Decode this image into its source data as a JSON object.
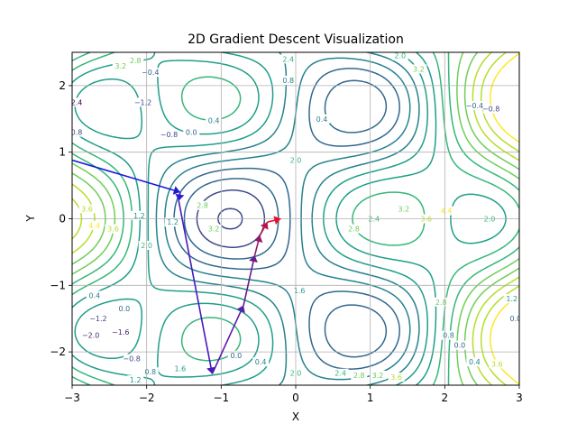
{
  "chart_data": {
    "type": "contour",
    "title": "2D Gradient Descent Visualization",
    "xlabel": "X",
    "ylabel": "Y",
    "xlim": [
      -3,
      3
    ],
    "ylim": [
      -2.5,
      2.5
    ],
    "grid": true,
    "x_ticks": [
      {
        "value": -3,
        "label": "−3"
      },
      {
        "value": -2,
        "label": "−2"
      },
      {
        "value": -1,
        "label": "−1"
      },
      {
        "value": 0,
        "label": "0"
      },
      {
        "value": 1,
        "label": "1"
      },
      {
        "value": 2,
        "label": "2"
      },
      {
        "value": 3,
        "label": "3"
      }
    ],
    "y_ticks": [
      {
        "value": -2,
        "label": "−2"
      },
      {
        "value": -1,
        "label": "−1"
      },
      {
        "value": 0,
        "label": "0"
      },
      {
        "value": 1,
        "label": "1"
      },
      {
        "value": 2,
        "label": "2"
      }
    ],
    "contour_levels": [
      -2.4,
      -2.0,
      -1.6,
      -1.2,
      -0.8,
      -0.4,
      0.0,
      0.4,
      0.8,
      1.2,
      1.6,
      2.0,
      2.4,
      2.8,
      3.2,
      3.6,
      4.0,
      4.4
    ],
    "colormap": [
      "#440154",
      "#482878",
      "#3e4989",
      "#31688e",
      "#26828e",
      "#1f9e89",
      "#35b779",
      "#6ece58",
      "#b5de2b",
      "#fde725"
    ],
    "contour_labels": [
      {
        "x": -1.95,
        "y": 2.2,
        "text": "−0.4"
      },
      {
        "x": -2.05,
        "y": 1.75,
        "text": "−1.2"
      },
      {
        "x": -1.7,
        "y": 1.27,
        "text": "−0.8"
      },
      {
        "x": -1.4,
        "y": 1.3,
        "text": "0.0"
      },
      {
        "x": -1.1,
        "y": 1.48,
        "text": "0.4"
      },
      {
        "x": -1.25,
        "y": 0.2,
        "text": "2.8"
      },
      {
        "x": -1.1,
        "y": -0.15,
        "text": "3.2"
      },
      {
        "x": -1.65,
        "y": -0.05,
        "text": "1.2"
      },
      {
        "x": -0.1,
        "y": 2.4,
        "text": "2.4"
      },
      {
        "x": -0.1,
        "y": 2.08,
        "text": "0.8"
      },
      {
        "x": 0.35,
        "y": 1.5,
        "text": "0.4"
      },
      {
        "x": 0.0,
        "y": 0.88,
        "text": "2.0"
      },
      {
        "x": 0.78,
        "y": -0.15,
        "text": "2.8"
      },
      {
        "x": 1.05,
        "y": 0.0,
        "text": "2.4"
      },
      {
        "x": 0.05,
        "y": -1.08,
        "text": "1.6"
      },
      {
        "x": -0.47,
        "y": -2.15,
        "text": "0.4"
      },
      {
        "x": -0.8,
        "y": -2.05,
        "text": "0.0"
      },
      {
        "x": 0.0,
        "y": -2.32,
        "text": "2.0"
      },
      {
        "x": 0.6,
        "y": -2.32,
        "text": "2.4"
      },
      {
        "x": 0.85,
        "y": -2.35,
        "text": "2.8"
      },
      {
        "x": 1.1,
        "y": -2.35,
        "text": "3.2"
      },
      {
        "x": 1.35,
        "y": -2.38,
        "text": "3.6"
      },
      {
        "x": 1.45,
        "y": 0.15,
        "text": "3.2"
      },
      {
        "x": 1.75,
        "y": 0.0,
        "text": "3.6"
      },
      {
        "x": 2.02,
        "y": 0.12,
        "text": "4.4"
      },
      {
        "x": 2.6,
        "y": 0.0,
        "text": "2.0"
      },
      {
        "x": 2.4,
        "y": 1.7,
        "text": "−0.4"
      },
      {
        "x": 2.62,
        "y": 1.65,
        "text": "−0.8"
      },
      {
        "x": 2.9,
        "y": -1.2,
        "text": "1.2"
      },
      {
        "x": 2.95,
        "y": -1.5,
        "text": "0.0"
      },
      {
        "x": 1.95,
        "y": -1.25,
        "text": "2.8"
      },
      {
        "x": 2.05,
        "y": -1.75,
        "text": "0.8"
      },
      {
        "x": 2.2,
        "y": -1.9,
        "text": "0.0"
      },
      {
        "x": 2.4,
        "y": -2.15,
        "text": "0.4"
      },
      {
        "x": 2.7,
        "y": -2.18,
        "text": "3.6"
      },
      {
        "x": 1.4,
        "y": 2.45,
        "text": "2.0"
      },
      {
        "x": 1.65,
        "y": 2.25,
        "text": "3.2"
      },
      {
        "x": -2.35,
        "y": 2.3,
        "text": "3.2"
      },
      {
        "x": -2.15,
        "y": 2.38,
        "text": "2.8"
      },
      {
        "x": -2.98,
        "y": 1.75,
        "text": "−2.4"
      },
      {
        "x": -2.98,
        "y": 1.3,
        "text": "−0.8"
      },
      {
        "x": -2.8,
        "y": 0.15,
        "text": "3.6"
      },
      {
        "x": -2.7,
        "y": -0.1,
        "text": "4.4"
      },
      {
        "x": -2.45,
        "y": -0.15,
        "text": "3.6"
      },
      {
        "x": -2.1,
        "y": 0.05,
        "text": "1.2"
      },
      {
        "x": -2.0,
        "y": -0.4,
        "text": "2.0"
      },
      {
        "x": -2.7,
        "y": -1.15,
        "text": "0.4"
      },
      {
        "x": -2.3,
        "y": -1.35,
        "text": "0.0"
      },
      {
        "x": -2.65,
        "y": -1.5,
        "text": "−1.2"
      },
      {
        "x": -2.75,
        "y": -1.75,
        "text": "−2.0"
      },
      {
        "x": -2.35,
        "y": -1.7,
        "text": "−1.6"
      },
      {
        "x": -2.2,
        "y": -2.1,
        "text": "−0.8"
      },
      {
        "x": -1.95,
        "y": -2.3,
        "text": "0.8"
      },
      {
        "x": -2.15,
        "y": -2.42,
        "text": "1.2"
      },
      {
        "x": -1.55,
        "y": -2.25,
        "text": "1.6"
      }
    ],
    "path_outer": [
      {
        "x": -3.0,
        "y": 0.88
      },
      {
        "x": -1.55,
        "y": 0.4
      },
      {
        "x": -1.57,
        "y": 0.27
      },
      {
        "x": -1.12,
        "y": -2.33
      },
      {
        "x": -0.7,
        "y": -1.3
      }
    ],
    "path_inner": [
      {
        "x": -0.7,
        "y": -1.3
      },
      {
        "x": -0.55,
        "y": -0.55
      },
      {
        "x": -0.48,
        "y": -0.25
      },
      {
        "x": -0.38,
        "y": -0.05
      },
      {
        "x": -0.2,
        "y": 0.0
      }
    ]
  }
}
